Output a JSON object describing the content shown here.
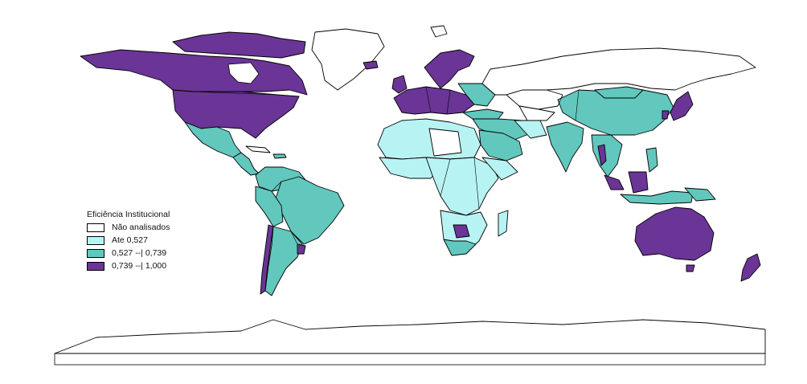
{
  "legend": {
    "title": "Eficiência Institucional",
    "items": [
      {
        "label": "Não analisados",
        "color": "#ffffff"
      },
      {
        "label": "Ate 0,527",
        "color": "#b8f3f3"
      },
      {
        "label": "0,527 --| 0,739",
        "color": "#62c7bd"
      },
      {
        "label": "0,739 --| 1,000",
        "color": "#6a3596"
      }
    ]
  },
  "colors": {
    "not_analyzed": "#ffffff",
    "low": "#b8f3f3",
    "mid": "#62c7bd",
    "high": "#6a3596",
    "outline": "#000000"
  }
}
